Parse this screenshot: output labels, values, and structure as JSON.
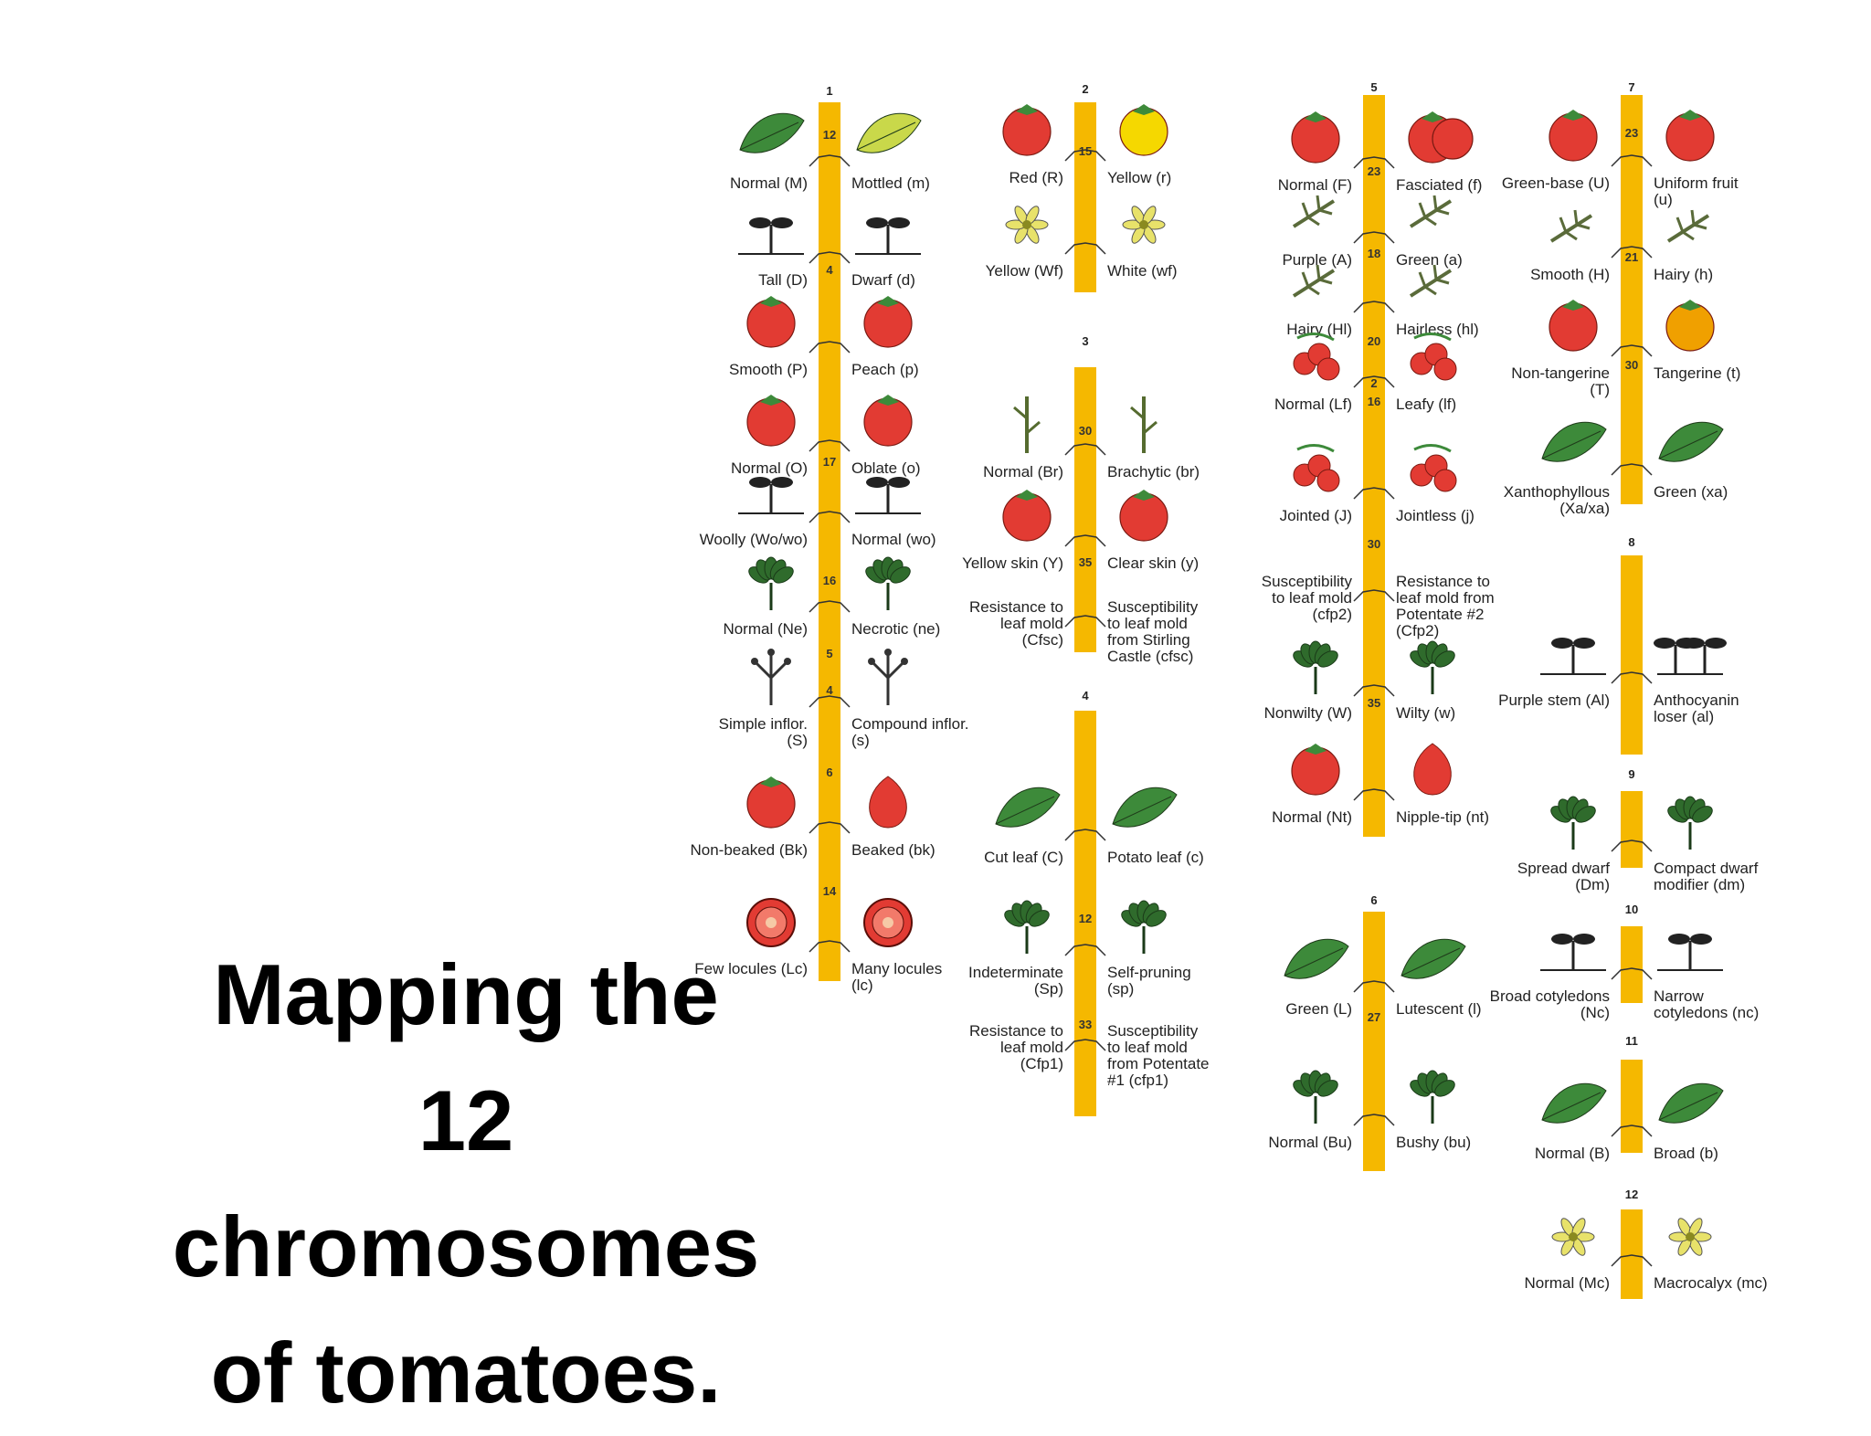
{
  "title": [
    "Mapping the",
    "12",
    "chromosomes",
    "of tomatoes."
  ],
  "colors": {
    "chromosome": "#f5b800",
    "fruit_red": "#e23b33",
    "fruit_yellow": "#f5d800",
    "fruit_orange": "#f0a000",
    "leaf_green": "#3d8a3a",
    "leaf_light": "#c9d84a",
    "purple": "#7a5aa0",
    "text": "#222222"
  },
  "chromosomes": [
    {
      "number": "1",
      "distances": [
        "12",
        "4",
        "17",
        "16",
        "5",
        "4",
        "6",
        "14"
      ],
      "traits": [
        {
          "left": "Normal (M)",
          "right": "Mottled (m)",
          "left_icon": "leaf-icon",
          "right_icon": "mottled-leaf-icon"
        },
        {
          "left": "Tall (D)",
          "right": "Dwarf (d)",
          "left_icon": "seedling-icon",
          "right_icon": "seedling-icon"
        },
        {
          "left": "Smooth (P)",
          "right": "Peach (p)",
          "left_icon": "tomato-icon",
          "right_icon": "tomato-icon"
        },
        {
          "left": "Normal (O)",
          "right": "Oblate (o)",
          "left_icon": "tomato-icon",
          "right_icon": "tomato-icon"
        },
        {
          "left": "Woolly (Wo/wo)",
          "right": "Normal (wo)",
          "left_icon": "woolly-seedling-icon",
          "right_icon": "seedling-icon"
        },
        {
          "left": "Normal (Ne)",
          "right": "Necrotic (ne)",
          "left_icon": "plant-icon",
          "right_icon": "necrotic-plant-icon"
        },
        {
          "left": "Simple inflor. (S)",
          "right": "Compound inflor. (s)",
          "left_icon": "inflorescence-icon",
          "right_icon": "inflorescence-icon"
        },
        {
          "left": "Non-beaked (Bk)",
          "right": "Beaked (bk)",
          "left_icon": "tomato-icon",
          "right_icon": "beaked-tomato-icon"
        },
        {
          "left": "Few locules (Lc)",
          "right": "Many locules (lc)",
          "left_icon": "tomato-section-icon",
          "right_icon": "tomato-section-icon"
        }
      ]
    },
    {
      "number": "2",
      "distances": [
        "15"
      ],
      "traits": [
        {
          "left": "Red (R)",
          "right": "Yellow (r)",
          "left_icon": "tomato-icon",
          "right_icon": "tomato-icon"
        },
        {
          "left": "Yellow (Wf)",
          "right": "White (wf)",
          "left_icon": "flower-icon",
          "right_icon": "flower-icon"
        }
      ]
    },
    {
      "number": "3",
      "distances": [
        "30",
        "35"
      ],
      "traits": [
        {
          "left": "Normal (Br)",
          "right": "Brachytic (br)",
          "left_icon": "stem-icon",
          "right_icon": "stem-icon"
        },
        {
          "left": "Yellow skin (Y)",
          "right": "Clear skin (y)",
          "left_icon": "tomato-icon",
          "right_icon": "tomato-icon"
        },
        {
          "left": "Resistance to leaf mold (Cfsc)",
          "right": "Susceptibility to leaf mold from Stirling Castle (cfsc)"
        }
      ]
    },
    {
      "number": "4",
      "distances": [
        "12",
        "33"
      ],
      "traits": [
        {
          "left": "Cut leaf (C)",
          "right": "Potato leaf (c)",
          "left_icon": "leaf-icon",
          "right_icon": "leaf-icon"
        },
        {
          "left": "Indeterminate (Sp)",
          "right": "Self-pruning (sp)",
          "left_icon": "plant-icon",
          "right_icon": "plant-icon"
        },
        {
          "left": "Resistance to leaf mold (Cfp1)",
          "right": "Susceptibility to leaf mold from Potentate #1 (cfp1)"
        }
      ]
    },
    {
      "number": "5",
      "distances": [
        "23",
        "18",
        "20",
        "2",
        "16",
        "30",
        "35"
      ],
      "traits": [
        {
          "left": "Normal (F)",
          "right": "Fasciated (f)",
          "left_icon": "tomato-icon",
          "right_icon": "fasciated-tomato-icon"
        },
        {
          "left": "Purple (A)",
          "right": "Green (a)",
          "left_icon": "sprig-icon",
          "right_icon": "sprig-icon"
        },
        {
          "left": "Hairy (Hl)",
          "right": "Hairless (hl)",
          "left_icon": "sprig-icon",
          "right_icon": "sprig-icon"
        },
        {
          "left": "Normal (Lf)",
          "right": "Leafy (lf)",
          "left_icon": "fruit-cluster-icon",
          "right_icon": "fruit-cluster-icon"
        },
        {
          "left": "Jointed (J)",
          "right": "Jointless (j)",
          "left_icon": "fruit-cluster-icon",
          "right_icon": "fruit-cluster-icon"
        },
        {
          "left": "Susceptibility to leaf mold (cfp2)",
          "right": "Resistance to leaf mold from Potentate #2 (Cfp2)"
        },
        {
          "left": "Nonwilty (W)",
          "right": "Wilty (w)",
          "left_icon": "plant-icon",
          "right_icon": "wilty-plant-icon"
        },
        {
          "left": "Normal (Nt)",
          "right": "Nipple-tip (nt)",
          "left_icon": "tomato-icon",
          "right_icon": "nipple-tip-tomato-icon"
        }
      ]
    },
    {
      "number": "6",
      "distances": [
        "27"
      ],
      "traits": [
        {
          "left": "Green (L)",
          "right": "Lutescent (l)",
          "left_icon": "leaf-icon",
          "right_icon": "leaf-icon"
        },
        {
          "left": "Normal (Bu)",
          "right": "Bushy (bu)",
          "left_icon": "plant-icon",
          "right_icon": "bushy-plant-icon"
        }
      ]
    },
    {
      "number": "7",
      "distances": [
        "23",
        "21",
        "30"
      ],
      "traits": [
        {
          "left": "Green-base (U)",
          "right": "Uniform fruit (u)",
          "left_icon": "tomato-icon",
          "right_icon": "tomato-icon"
        },
        {
          "left": "Smooth (H)",
          "right": "Hairy (h)",
          "left_icon": "sprig-icon",
          "right_icon": "sprig-icon"
        },
        {
          "left": "Non-tangerine (T)",
          "right": "Tangerine (t)",
          "left_icon": "tomato-icon",
          "right_icon": "tomato-icon"
        },
        {
          "left": "Xanthophyllous (Xa/xa)",
          "right": "Green (xa)",
          "left_icon": "leaf-icon",
          "right_icon": "leaf-icon"
        }
      ]
    },
    {
      "number": "8",
      "distances": [],
      "traits": [
        {
          "left": "Purple stem (Al)",
          "right": "Anthocyanin loser (al)",
          "left_icon": "seedling-icon",
          "right_icon": "seedling-pair-icon"
        }
      ]
    },
    {
      "number": "9",
      "distances": [],
      "traits": [
        {
          "left": "Spread dwarf (Dm)",
          "right": "Compact dwarf modifier (dm)",
          "left_icon": "plant-icon",
          "right_icon": "plant-icon"
        }
      ]
    },
    {
      "number": "10",
      "distances": [],
      "traits": [
        {
          "left": "Broad cotyledons (Nc)",
          "right": "Narrow cotyledons (nc)",
          "left_icon": "seedling-icon",
          "right_icon": "seedling-icon"
        }
      ]
    },
    {
      "number": "11",
      "distances": [],
      "traits": [
        {
          "left": "Normal (B)",
          "right": "Broad (b)",
          "left_icon": "leaf-icon",
          "right_icon": "leaf-icon"
        }
      ]
    },
    {
      "number": "12",
      "distances": [],
      "traits": [
        {
          "left": "Normal (Mc)",
          "right": "Macrocalyx (mc)",
          "left_icon": "flower-icon",
          "right_icon": "flower-icon"
        }
      ]
    }
  ]
}
